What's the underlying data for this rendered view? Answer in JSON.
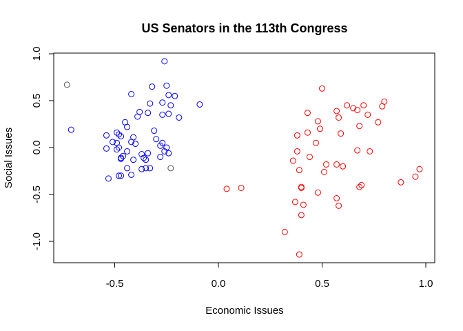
{
  "chart_data": {
    "type": "scatter",
    "title": "US Senators in the 113th Congress",
    "xlabel": "Economic Issues",
    "ylabel": "Social Issues",
    "xlim": [
      -0.75,
      1.0
    ],
    "ylim": [
      -1.15,
      1.0
    ],
    "xticks": [
      -0.5,
      0.0,
      0.5,
      1.0
    ],
    "xtick_labels": [
      "-0.5",
      "0.0",
      "0.5",
      "1.0"
    ],
    "yticks": [
      -1.0,
      -0.5,
      0.0,
      0.5,
      1.0
    ],
    "ytick_labels": [
      "-1.0",
      "-0.5",
      "0.0",
      "0.5",
      "1.0"
    ],
    "grid": false,
    "legend": "none",
    "series": [
      {
        "color": "#0000ff",
        "points": [
          [
            -0.26,
            0.92
          ],
          [
            -0.25,
            0.66
          ],
          [
            -0.32,
            0.65
          ],
          [
            -0.24,
            0.56
          ],
          [
            -0.21,
            0.55
          ],
          [
            -0.42,
            0.57
          ],
          [
            -0.09,
            0.46
          ],
          [
            -0.27,
            0.48
          ],
          [
            -0.33,
            0.47
          ],
          [
            -0.23,
            0.45
          ],
          [
            -0.38,
            0.38
          ],
          [
            -0.34,
            0.37
          ],
          [
            -0.39,
            0.33
          ],
          [
            -0.27,
            0.35
          ],
          [
            -0.24,
            0.36
          ],
          [
            -0.19,
            0.32
          ],
          [
            -0.45,
            0.27
          ],
          [
            -0.44,
            0.22
          ],
          [
            -0.71,
            0.19
          ],
          [
            -0.31,
            0.18
          ],
          [
            -0.49,
            0.16
          ],
          [
            -0.48,
            0.14
          ],
          [
            -0.54,
            0.13
          ],
          [
            -0.47,
            0.12
          ],
          [
            -0.41,
            0.11
          ],
          [
            -0.3,
            0.09
          ],
          [
            -0.42,
            0.06
          ],
          [
            -0.49,
            0.05
          ],
          [
            -0.51,
            0.06
          ],
          [
            -0.4,
            0.04
          ],
          [
            -0.27,
            0.05
          ],
          [
            -0.28,
            0.02
          ],
          [
            -0.25,
            0.0
          ],
          [
            -0.54,
            -0.01
          ],
          [
            -0.49,
            -0.02
          ],
          [
            -0.48,
            0.0
          ],
          [
            -0.44,
            -0.04
          ],
          [
            -0.26,
            -0.04
          ],
          [
            -0.24,
            -0.06
          ],
          [
            -0.37,
            -0.07
          ],
          [
            -0.34,
            -0.06
          ],
          [
            -0.46,
            -0.09
          ],
          [
            -0.47,
            -0.11
          ],
          [
            -0.36,
            -0.11
          ],
          [
            -0.35,
            -0.13
          ],
          [
            -0.41,
            -0.13
          ],
          [
            -0.28,
            -0.1
          ],
          [
            -0.47,
            -0.12
          ],
          [
            -0.44,
            -0.22
          ],
          [
            -0.37,
            -0.23
          ],
          [
            -0.35,
            -0.22
          ],
          [
            -0.33,
            -0.22
          ],
          [
            -0.42,
            -0.29
          ],
          [
            -0.48,
            -0.3
          ],
          [
            -0.53,
            -0.33
          ],
          [
            -0.47,
            -0.3
          ]
        ]
      },
      {
        "color": "#ff0000",
        "points": [
          [
            0.5,
            0.63
          ],
          [
            0.8,
            0.49
          ],
          [
            0.62,
            0.45
          ],
          [
            0.7,
            0.45
          ],
          [
            0.79,
            0.44
          ],
          [
            0.65,
            0.42
          ],
          [
            0.67,
            0.4
          ],
          [
            0.57,
            0.39
          ],
          [
            0.43,
            0.37
          ],
          [
            0.72,
            0.35
          ],
          [
            0.58,
            0.32
          ],
          [
            0.48,
            0.28
          ],
          [
            0.77,
            0.27
          ],
          [
            0.68,
            0.23
          ],
          [
            0.49,
            0.2
          ],
          [
            0.43,
            0.16
          ],
          [
            0.59,
            0.15
          ],
          [
            0.38,
            0.13
          ],
          [
            0.47,
            0.05
          ],
          [
            0.38,
            -0.04
          ],
          [
            0.67,
            -0.03
          ],
          [
            0.73,
            -0.04
          ],
          [
            0.44,
            -0.1
          ],
          [
            0.36,
            -0.14
          ],
          [
            0.52,
            -0.18
          ],
          [
            0.57,
            -0.18
          ],
          [
            0.6,
            -0.2
          ],
          [
            0.97,
            -0.23
          ],
          [
            0.39,
            -0.24
          ],
          [
            0.51,
            -0.26
          ],
          [
            0.95,
            -0.31
          ],
          [
            0.88,
            -0.37
          ],
          [
            0.04,
            -0.44
          ],
          [
            0.11,
            -0.43
          ],
          [
            0.4,
            -0.42
          ],
          [
            0.4,
            -0.43
          ],
          [
            0.68,
            -0.42
          ],
          [
            0.69,
            -0.4
          ],
          [
            0.48,
            -0.48
          ],
          [
            0.57,
            -0.54
          ],
          [
            0.37,
            -0.58
          ],
          [
            0.41,
            -0.61
          ],
          [
            0.58,
            -0.62
          ],
          [
            0.4,
            -0.72
          ],
          [
            0.32,
            -0.9
          ],
          [
            0.39,
            -1.14
          ]
        ]
      },
      {
        "color": "#555555",
        "points": [
          [
            -0.73,
            0.67
          ],
          [
            -0.23,
            -0.22
          ]
        ]
      }
    ]
  }
}
